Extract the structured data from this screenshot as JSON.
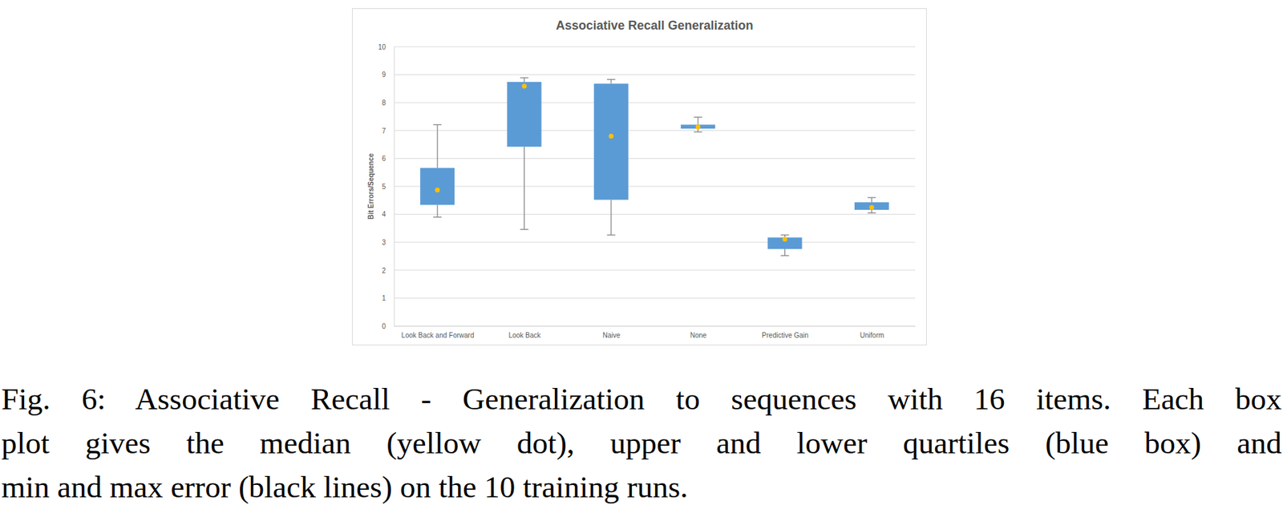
{
  "chart_data": {
    "type": "box",
    "title": "Associative Recall Generalization",
    "y_label": "Bit Errors/Sequence",
    "categories": [
      "Look Back and Forward",
      "Look Back",
      "Naive",
      "None",
      "Predictive Gain",
      "Uniform"
    ],
    "min": [
      3.9,
      3.46,
      3.26,
      6.95,
      2.52,
      4.05
    ],
    "q1": [
      4.34,
      6.42,
      4.52,
      7.07,
      2.76,
      4.16
    ],
    "median": [
      4.87,
      8.59,
      6.8,
      7.13,
      3.11,
      4.25
    ],
    "q3": [
      5.66,
      8.74,
      8.68,
      7.21,
      3.17,
      4.43
    ],
    "max": [
      7.21,
      8.89,
      8.83,
      7.48,
      3.26,
      4.6
    ],
    "color": "#5b9bd5",
    "ylim": [
      0,
      10
    ],
    "yticks": [
      0,
      1,
      2,
      3,
      4,
      5,
      6,
      7,
      8,
      9,
      10
    ],
    "grid": true
  },
  "caption": [
    "Fig. 6: Associative Recall - Generalization to sequences with 16 items. Each box",
    "plot gives the median (yellow dot), upper and lower quartiles (blue box) and",
    "min and max error (black lines) on the 10 training runs."
  ]
}
